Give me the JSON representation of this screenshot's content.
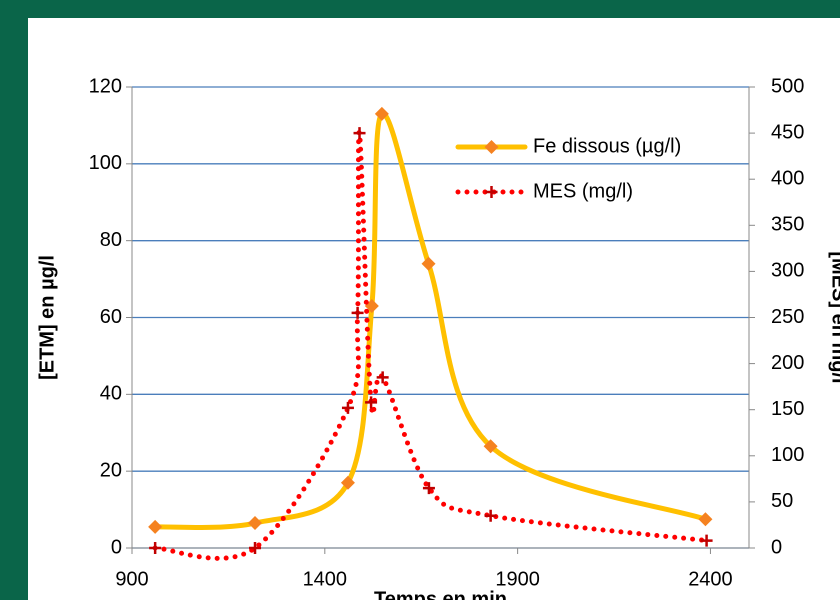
{
  "chart_data": {
    "type": "line",
    "xlabel": "Temps en min",
    "ylabel": "[ETM] en µg/l",
    "y2label": "[MES] en mg/l",
    "xlim": [
      900,
      2500
    ],
    "xticks": [
      900,
      1400,
      1900,
      2400
    ],
    "ylim": [
      0,
      120
    ],
    "yticks": [
      0,
      20,
      40,
      60,
      80,
      100,
      120
    ],
    "y2lim": [
      0,
      500
    ],
    "y2ticks": [
      0,
      50,
      100,
      150,
      200,
      250,
      300,
      350,
      400,
      450,
      500
    ],
    "grid": true,
    "legend": "top-right",
    "series": [
      {
        "name": "Fe dissous (µg/l)",
        "color": "#ffc000",
        "marker_color": "#f58220",
        "marker": "diamond",
        "line_style": "solid",
        "x": [
          960,
          1219,
          1460,
          1522,
          1548,
          1669,
          1830,
          2387
        ],
        "values": [
          5.5,
          6.5,
          17,
          63,
          113,
          74,
          26.5,
          7.5
        ]
      },
      {
        "name": "MES (mg/l)",
        "color": "#ff0000",
        "marker_color": "#c00000",
        "marker": "cross",
        "line_style": "dotted",
        "axis": "y2",
        "x": [
          960,
          1219,
          1460,
          1485,
          1490,
          1520,
          1550,
          1670,
          1830,
          2390
        ],
        "values": [
          0,
          0,
          152,
          255,
          450,
          158,
          185,
          65,
          35,
          8
        ]
      }
    ]
  }
}
